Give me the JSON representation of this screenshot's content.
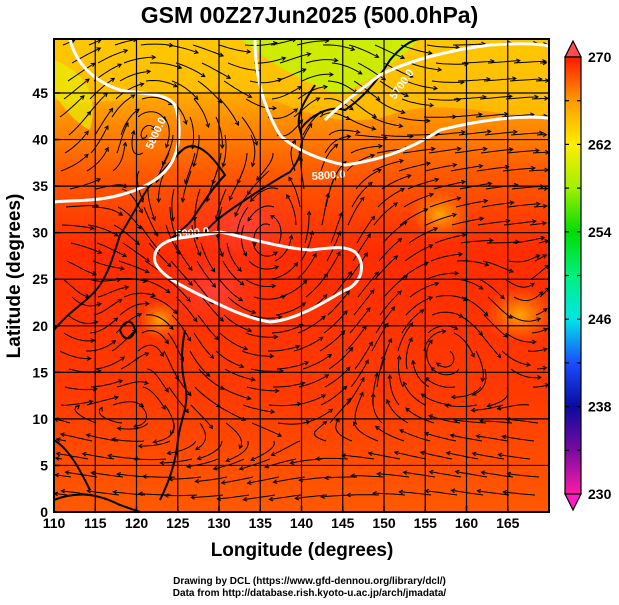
{
  "title": "GSM 00Z27Jun2025 (500.0hPa)",
  "axes": {
    "xlabel": "Longitude (degrees)",
    "ylabel": "Latitude  (degrees)",
    "xticks": [
      "110",
      "115",
      "120",
      "125",
      "130",
      "135",
      "140",
      "145",
      "150",
      "155",
      "160",
      "165"
    ],
    "xtick_values": [
      110,
      115,
      120,
      125,
      130,
      135,
      140,
      145,
      150,
      155,
      160,
      165
    ],
    "yticks": [
      "0",
      "5",
      "10",
      "15",
      "20",
      "25",
      "30",
      "35",
      "40",
      "45"
    ],
    "ytick_values": [
      0,
      5,
      10,
      15,
      20,
      25,
      30,
      35,
      40,
      45
    ],
    "xlim": [
      110,
      170
    ],
    "ylim": [
      0,
      50.8
    ]
  },
  "colorbar": {
    "labels": [
      "270",
      "262",
      "254",
      "246",
      "238",
      "230"
    ],
    "values": [
      270,
      262,
      254,
      246,
      238,
      230
    ],
    "range": [
      230,
      270
    ],
    "stops": [
      {
        "v": 230,
        "c": "#ff1aa8"
      },
      {
        "v": 234,
        "c": "#7a0aa0"
      },
      {
        "v": 238,
        "c": "#0a0aa0"
      },
      {
        "v": 242,
        "c": "#1a4dff"
      },
      {
        "v": 246,
        "c": "#00e6e6"
      },
      {
        "v": 250,
        "c": "#00f080"
      },
      {
        "v": 254,
        "c": "#00dd00"
      },
      {
        "v": 258,
        "c": "#a0f000"
      },
      {
        "v": 262,
        "c": "#ffee00"
      },
      {
        "v": 266,
        "c": "#ff9900"
      },
      {
        "v": 270,
        "c": "#ff1a00"
      }
    ],
    "over_color": "#ff4d4d",
    "under_color": "#ff1ac6"
  },
  "contours": [
    {
      "label": "5700.0"
    },
    {
      "label": "5800.0"
    },
    {
      "label": "5800.0"
    },
    {
      "label": "5900.0"
    }
  ],
  "credits": {
    "line1": "Drawing by DCL (https://www.gfd-dennou.org/library/dcl/)",
    "line2": "Data from http://database.rish.kyoto-u.ac.jp/arch/jmadata/"
  }
}
